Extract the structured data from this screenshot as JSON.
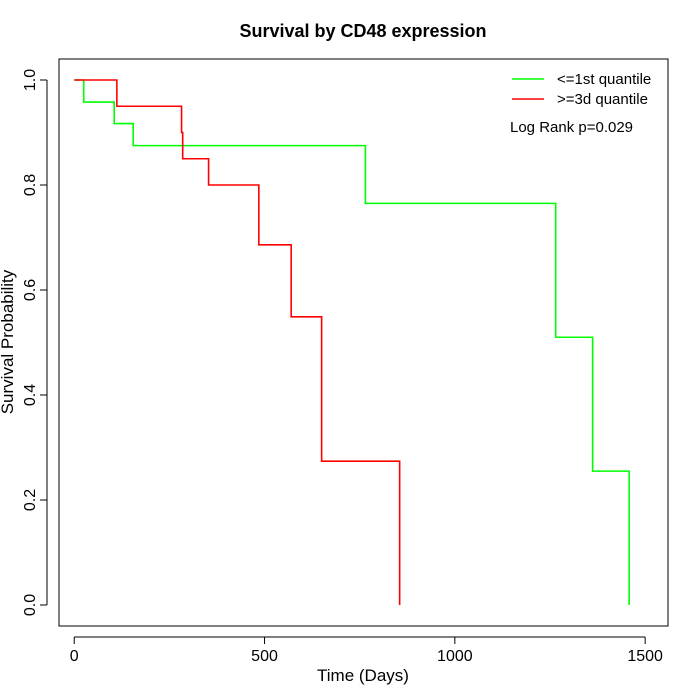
{
  "chart_data": {
    "type": "line",
    "title": "Survival by CD48 expression",
    "xlabel": "Time (Days)",
    "ylabel": "Survival Probability",
    "xlim": [
      -40,
      1560
    ],
    "ylim": [
      -0.04,
      1.04
    ],
    "x_ticks": [
      0,
      500,
      1000,
      1500
    ],
    "x_tick_labels": [
      "0",
      "500",
      "1000",
      "1500"
    ],
    "y_ticks": [
      0.0,
      0.2,
      0.4,
      0.6,
      0.8,
      1.0
    ],
    "y_tick_labels": [
      "0.0",
      "0.2",
      "0.4",
      "0.6",
      "0.8",
      "1.0"
    ],
    "grid": false,
    "legend_position": "top-right",
    "annotation": "Log Rank p=0.029",
    "series": [
      {
        "name": "<=1st quantile",
        "color": "#00ff00",
        "step": true,
        "x": [
          0,
          25,
          105,
          155,
          765,
          1265,
          1362,
          1458,
          1458
        ],
        "y": [
          1.0,
          0.958,
          0.917,
          0.875,
          0.765,
          0.51,
          0.255,
          0.255,
          0.0
        ]
      },
      {
        "name": ">=3d quantile",
        "color": "#ff0000",
        "step": true,
        "x": [
          0,
          112,
          282,
          285,
          353,
          485,
          570,
          650,
          855,
          855
        ],
        "y": [
          1.0,
          0.95,
          0.9,
          0.85,
          0.8,
          0.686,
          0.549,
          0.274,
          0.274,
          0.0
        ]
      }
    ]
  }
}
